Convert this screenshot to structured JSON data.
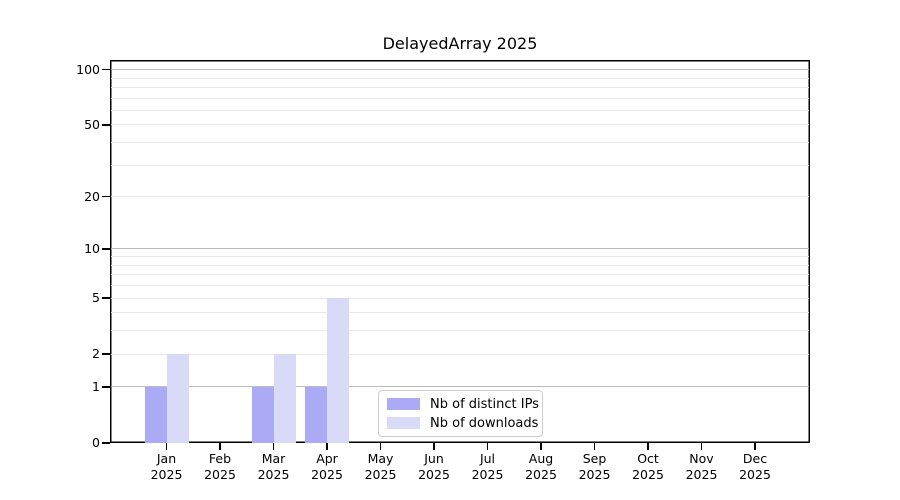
{
  "chart_data": {
    "type": "bar",
    "title": "DelayedArray 2025",
    "x": [
      "Jan 2025",
      "Feb 2025",
      "Mar 2025",
      "Apr 2025",
      "May 2025",
      "Jun 2025",
      "Jul 2025",
      "Aug 2025",
      "Sep 2025",
      "Oct 2025",
      "Nov 2025",
      "Dec 2025"
    ],
    "series": [
      {
        "name": "Nb of distinct IPs",
        "color": "#aaaaf5",
        "values": [
          1,
          0,
          1,
          1,
          0,
          0,
          0,
          0,
          0,
          0,
          0,
          0
        ]
      },
      {
        "name": "Nb of downloads",
        "color": "#d9d9f8",
        "values": [
          2,
          0,
          2,
          5,
          0,
          0,
          0,
          0,
          0,
          0,
          0,
          0
        ]
      }
    ],
    "y_axis": {
      "scale": "log1p",
      "tick_values": [
        0,
        1,
        2,
        5,
        10,
        20,
        50,
        100
      ],
      "top_value": 112.7,
      "major_gridlines": [
        1,
        10,
        100
      ],
      "minor_gridlines": [
        2,
        3,
        4,
        5,
        6,
        7,
        8,
        9,
        20,
        30,
        40,
        50,
        60,
        70,
        80,
        90
      ]
    },
    "legend": {
      "location": "inside-bottom-center"
    },
    "colors": {
      "background": "#ffffff",
      "axis": "#000000",
      "major_grid": "#bbbbbb",
      "minor_grid": "#e9e9e9",
      "legend_border": "#cccccc"
    }
  }
}
